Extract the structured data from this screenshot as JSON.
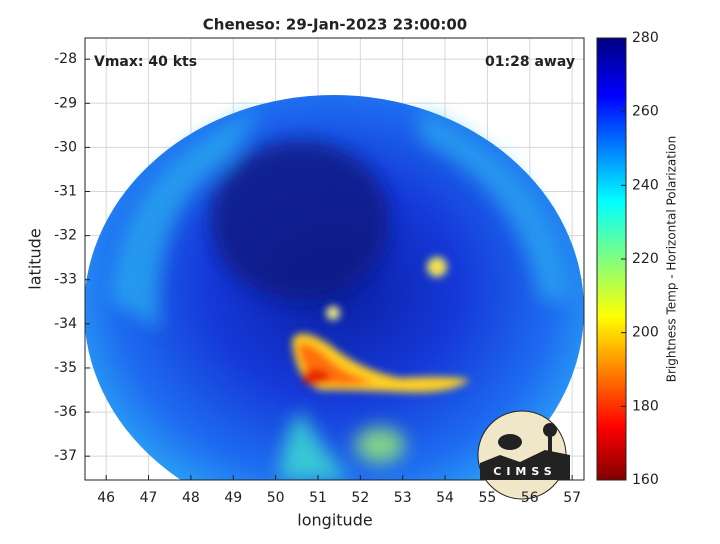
{
  "chart_data": {
    "type": "image-map",
    "title": "Cheneso: 29-Jan-2023 23:00:00",
    "annotations": [
      "Vmax: 40 kts",
      "01:28 away"
    ],
    "xlabel": "longitude",
    "ylabel": "latitude",
    "xlim": [
      45.5,
      57.28
    ],
    "xticks": [
      46,
      47,
      48,
      49,
      50,
      51,
      52,
      53,
      54,
      55,
      56,
      57
    ],
    "ylim": [
      -37.54,
      -27.52
    ],
    "yticks": [
      -37,
      -36,
      -35,
      -34,
      -33,
      -32,
      -31,
      -30,
      -29,
      -28
    ],
    "grid": true,
    "colorbar": {
      "label": "Brightness Temp - Horizontal Polarization",
      "lim": [
        160,
        280
      ],
      "ticks": [
        160,
        180,
        200,
        220,
        240,
        260,
        280
      ]
    },
    "logo": "CIMSS"
  }
}
